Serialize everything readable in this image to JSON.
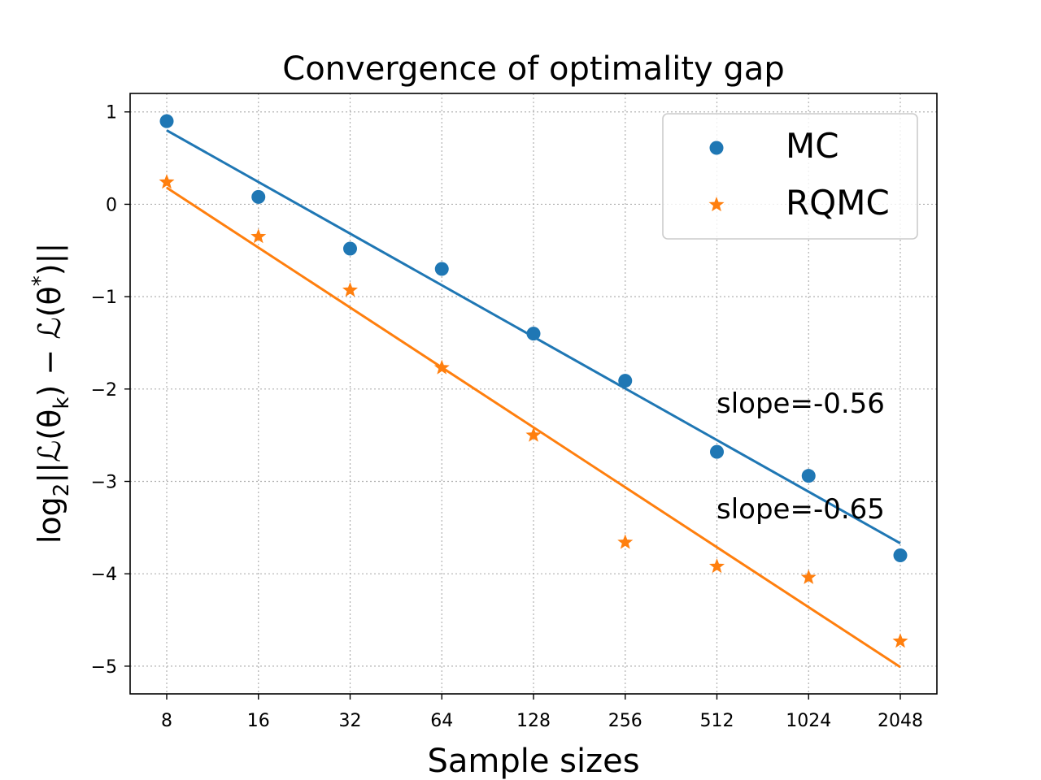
{
  "chart_data": {
    "type": "scatter",
    "title": "Convergence of optimality gap",
    "xlabel": "Sample sizes",
    "ylabel": {
      "prefix": "log",
      "sub": "2",
      "body1": "||ℒ(θ",
      "sub2": "k",
      "body2": ") − ℒ(θ",
      "sup": "*",
      "body3": ")||"
    },
    "x_scale": "log2",
    "x": [
      8,
      16,
      32,
      64,
      128,
      256,
      512,
      1024,
      2048
    ],
    "xtick_labels": [
      "8",
      "16",
      "32",
      "64",
      "128",
      "256",
      "512",
      "1024",
      "2048"
    ],
    "ylim": [
      -5.3,
      1.2
    ],
    "yticks": [
      1,
      0,
      -1,
      -2,
      -3,
      -4,
      -5
    ],
    "ytick_labels": [
      "1",
      "0",
      "−1",
      "−2",
      "−3",
      "−4",
      "−5"
    ],
    "grid": true,
    "legend_position": "upper right",
    "series": [
      {
        "name": "MC",
        "marker": "circle",
        "color": "#1f77b4",
        "values": [
          0.9,
          0.08,
          -0.48,
          -0.7,
          -1.4,
          -1.91,
          -2.68,
          -2.94,
          -3.8
        ],
        "fit": {
          "start": 0.8,
          "end": -3.67
        },
        "annotation": "slope=-0.56"
      },
      {
        "name": "RQMC",
        "marker": "star",
        "color": "#ff7f0e",
        "values": [
          0.24,
          -0.35,
          -0.93,
          -1.77,
          -2.5,
          -3.66,
          -3.92,
          -4.04,
          -4.73
        ],
        "fit": {
          "start": 0.18,
          "end": -5.01
        },
        "annotation": "slope=-0.65"
      }
    ]
  }
}
